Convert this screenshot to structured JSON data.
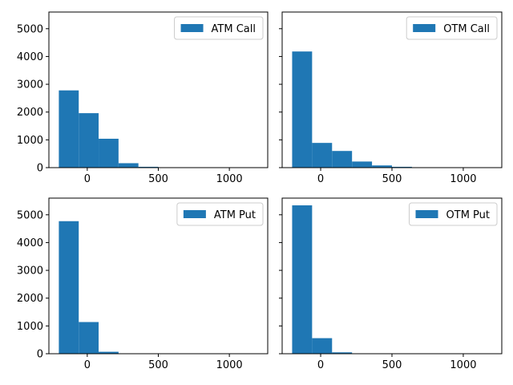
{
  "chart_data": [
    {
      "type": "histogram",
      "legend": "ATM Call",
      "legend_position": "upper right",
      "color": "#1f77b4",
      "bin_edges": [
        -200,
        -60,
        80,
        220,
        360,
        500,
        640,
        780,
        920,
        1060,
        1200
      ],
      "counts": [
        2780,
        1960,
        1040,
        160,
        30,
        10,
        0,
        0,
        0,
        0
      ],
      "xlim": [
        -270,
        1270
      ],
      "ylim": [
        0,
        5600
      ],
      "xticks": [
        0,
        500,
        1000
      ],
      "yticks": [
        0,
        1000,
        2000,
        3000,
        4000,
        5000
      ],
      "show_ytick_labels": true
    },
    {
      "type": "histogram",
      "legend": "OTM Call",
      "legend_position": "upper right",
      "color": "#1f77b4",
      "bin_edges": [
        -200,
        -60,
        80,
        220,
        360,
        500,
        640,
        780,
        920,
        1060,
        1200
      ],
      "counts": [
        4180,
        890,
        600,
        220,
        80,
        30,
        10,
        5,
        0,
        0
      ],
      "xlim": [
        -270,
        1270
      ],
      "ylim": [
        0,
        5600
      ],
      "xticks": [
        0,
        500,
        1000
      ],
      "yticks": [
        0,
        1000,
        2000,
        3000,
        4000,
        5000
      ],
      "show_ytick_labels": false
    },
    {
      "type": "histogram",
      "legend": "ATM Put",
      "legend_position": "upper right",
      "color": "#1f77b4",
      "bin_edges": [
        -200,
        -60,
        80,
        220,
        360,
        500,
        640,
        780,
        920,
        1060,
        1200
      ],
      "counts": [
        4770,
        1140,
        70,
        5,
        0,
        0,
        0,
        0,
        0,
        0
      ],
      "xlim": [
        -270,
        1270
      ],
      "ylim": [
        0,
        5600
      ],
      "xticks": [
        0,
        500,
        1000
      ],
      "yticks": [
        0,
        1000,
        2000,
        3000,
        4000,
        5000
      ],
      "show_ytick_labels": true
    },
    {
      "type": "histogram",
      "legend": "OTM Put",
      "legend_position": "upper right",
      "color": "#1f77b4",
      "bin_edges": [
        -200,
        -60,
        80,
        220,
        360,
        500,
        640,
        780,
        920,
        1060,
        1200
      ],
      "counts": [
        5340,
        560,
        50,
        5,
        0,
        0,
        0,
        0,
        0,
        0
      ],
      "xlim": [
        -270,
        1270
      ],
      "ylim": [
        0,
        5600
      ],
      "xticks": [
        0,
        500,
        1000
      ],
      "yticks": [
        0,
        1000,
        2000,
        3000,
        4000,
        5000
      ],
      "show_ytick_labels": false
    }
  ]
}
